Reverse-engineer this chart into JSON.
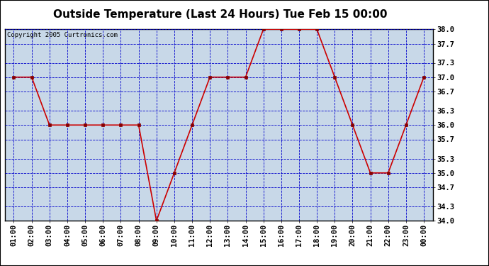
{
  "title": "Outside Temperature (Last 24 Hours) Tue Feb 15 00:00",
  "copyright": "Copyright 2005 Curtronics.com",
  "x_labels": [
    "01:00",
    "02:00",
    "03:00",
    "04:00",
    "05:00",
    "06:00",
    "07:00",
    "08:00",
    "09:00",
    "10:00",
    "11:00",
    "12:00",
    "13:00",
    "14:00",
    "15:00",
    "16:00",
    "17:00",
    "18:00",
    "19:00",
    "20:00",
    "21:00",
    "22:00",
    "23:00",
    "00:00"
  ],
  "x_values": [
    1,
    2,
    3,
    4,
    5,
    6,
    7,
    8,
    9,
    10,
    11,
    12,
    13,
    14,
    15,
    16,
    17,
    18,
    19,
    20,
    21,
    22,
    23,
    24
  ],
  "y_values": [
    37.0,
    37.0,
    36.0,
    36.0,
    36.0,
    36.0,
    36.0,
    36.0,
    34.0,
    35.0,
    36.0,
    37.0,
    37.0,
    37.0,
    38.0,
    38.0,
    38.0,
    38.0,
    37.0,
    36.0,
    35.0,
    35.0,
    36.0,
    37.0
  ],
  "ylim": [
    34.0,
    38.0
  ],
  "yticks": [
    34.0,
    34.3,
    34.7,
    35.0,
    35.3,
    35.7,
    36.0,
    36.3,
    36.7,
    37.0,
    37.3,
    37.7,
    38.0
  ],
  "ytick_labels": [
    "34.0",
    "34.3",
    "34.7",
    "35.0",
    "35.3",
    "35.7",
    "36.0",
    "36.3",
    "36.7",
    "37.0",
    "37.3",
    "37.7",
    "38.0"
  ],
  "line_color": "#cc0000",
  "marker": "s",
  "marker_color": "#880000",
  "marker_size": 2.5,
  "grid_color": "#0000cc",
  "bg_color": "#c8d8e8",
  "fig_bg_color": "#ffffff",
  "title_fontsize": 11,
  "copyright_fontsize": 6.5,
  "tick_fontsize": 7.5,
  "ytick_fontweight": "bold"
}
